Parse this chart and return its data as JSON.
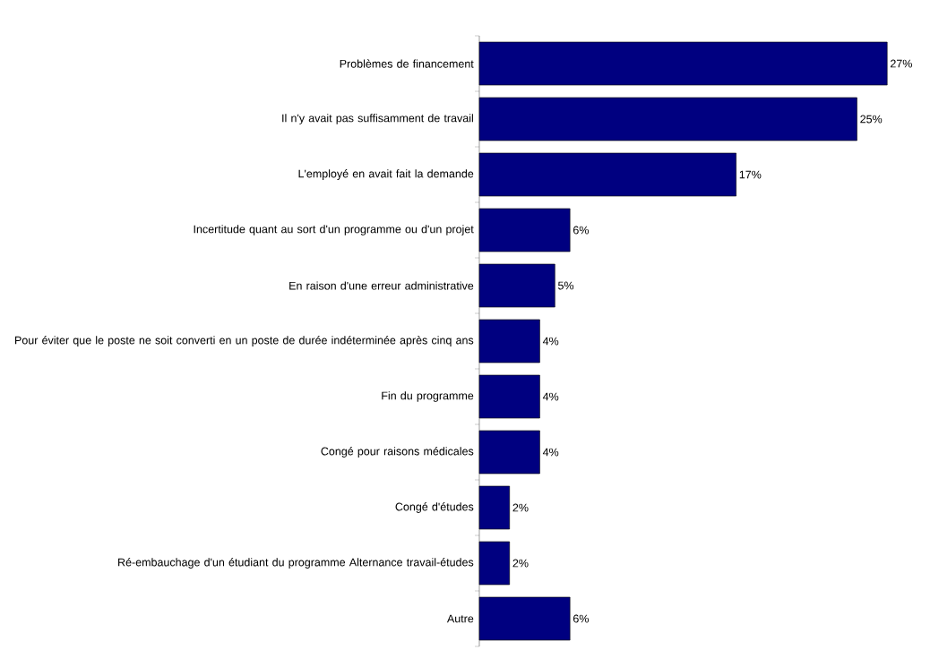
{
  "chart_data": {
    "type": "bar",
    "orientation": "horizontal",
    "data_labels": true,
    "color": "#000080",
    "categories": [
      "Problèmes de financement",
      "Il n'y avait pas suffisamment de travail",
      "L'employé en avait fait la demande",
      "Incertitude quant au sort d'un programme ou d'un projet",
      "En raison d'une erreur administrative",
      "Pour éviter que le poste ne soit converti en un poste de durée indéterminée après cinq ans",
      "Fin du programme",
      "Congé pour raisons médicales",
      "Congé d'études",
      "Ré-embauchage d'un étudiant du programme Alternance travail-études",
      "Autre"
    ],
    "values": [
      27,
      25,
      17,
      6,
      5,
      4,
      4,
      4,
      2,
      2,
      6
    ],
    "value_labels": [
      "27%",
      "25%",
      "17%",
      "6%",
      "5%",
      "4%",
      "4%",
      "4%",
      "2%",
      "2%",
      "6%"
    ]
  }
}
